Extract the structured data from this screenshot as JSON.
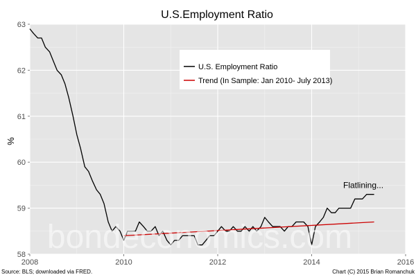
{
  "colors": {
    "panel": "#e5e5e5",
    "grid_major": "#ffffff",
    "grid_minor": "#f2f2f2",
    "series_actual": "#000000",
    "series_trend": "#cc0000"
  },
  "chart_data": {
    "type": "line",
    "title": "U.S.Employment Ratio",
    "xlabel": "",
    "ylabel": "%",
    "xlim": [
      2008,
      2016
    ],
    "ylim": [
      58,
      63
    ],
    "x_ticks": [
      2008,
      2010,
      2012,
      2014,
      2016
    ],
    "y_ticks": [
      58,
      59,
      60,
      61,
      62,
      63
    ],
    "grid": true,
    "legend_position": "top-center",
    "series": [
      {
        "name": "U.S. Employment Ratio",
        "color": "#000000",
        "values": [
          [
            2008.0,
            62.9
          ],
          [
            2008.08,
            62.8
          ],
          [
            2008.17,
            62.7
          ],
          [
            2008.25,
            62.7
          ],
          [
            2008.33,
            62.5
          ],
          [
            2008.42,
            62.4
          ],
          [
            2008.5,
            62.2
          ],
          [
            2008.58,
            62.0
          ],
          [
            2008.67,
            61.9
          ],
          [
            2008.75,
            61.7
          ],
          [
            2008.83,
            61.4
          ],
          [
            2008.92,
            61.0
          ],
          [
            2009.0,
            60.6
          ],
          [
            2009.08,
            60.3
          ],
          [
            2009.17,
            59.9
          ],
          [
            2009.25,
            59.8
          ],
          [
            2009.33,
            59.6
          ],
          [
            2009.42,
            59.4
          ],
          [
            2009.5,
            59.3
          ],
          [
            2009.58,
            59.1
          ],
          [
            2009.67,
            58.7
          ],
          [
            2009.75,
            58.5
          ],
          [
            2009.83,
            58.6
          ],
          [
            2009.92,
            58.5
          ],
          [
            2010.0,
            58.3
          ],
          [
            2010.08,
            58.5
          ],
          [
            2010.17,
            58.5
          ],
          [
            2010.25,
            58.5
          ],
          [
            2010.33,
            58.7
          ],
          [
            2010.42,
            58.6
          ],
          [
            2010.5,
            58.5
          ],
          [
            2010.58,
            58.5
          ],
          [
            2010.67,
            58.6
          ],
          [
            2010.75,
            58.4
          ],
          [
            2010.83,
            58.5
          ],
          [
            2010.92,
            58.3
          ],
          [
            2011.0,
            58.2
          ],
          [
            2011.08,
            58.3
          ],
          [
            2011.17,
            58.3
          ],
          [
            2011.25,
            58.4
          ],
          [
            2011.33,
            58.4
          ],
          [
            2011.42,
            58.4
          ],
          [
            2011.5,
            58.4
          ],
          [
            2011.58,
            58.2
          ],
          [
            2011.67,
            58.2
          ],
          [
            2011.75,
            58.3
          ],
          [
            2011.83,
            58.4
          ],
          [
            2011.92,
            58.4
          ],
          [
            2012.0,
            58.5
          ],
          [
            2012.08,
            58.6
          ],
          [
            2012.17,
            58.5
          ],
          [
            2012.25,
            58.5
          ],
          [
            2012.33,
            58.6
          ],
          [
            2012.42,
            58.5
          ],
          [
            2012.5,
            58.5
          ],
          [
            2012.58,
            58.6
          ],
          [
            2012.67,
            58.5
          ],
          [
            2012.75,
            58.6
          ],
          [
            2012.83,
            58.5
          ],
          [
            2012.92,
            58.6
          ],
          [
            2013.0,
            58.8
          ],
          [
            2013.08,
            58.7
          ],
          [
            2013.17,
            58.6
          ],
          [
            2013.25,
            58.6
          ],
          [
            2013.33,
            58.6
          ],
          [
            2013.42,
            58.5
          ],
          [
            2013.5,
            58.6
          ],
          [
            2013.58,
            58.6
          ],
          [
            2013.67,
            58.7
          ],
          [
            2013.75,
            58.7
          ],
          [
            2013.83,
            58.7
          ],
          [
            2013.92,
            58.6
          ],
          [
            2014.0,
            58.2
          ],
          [
            2014.08,
            58.6
          ],
          [
            2014.17,
            58.7
          ],
          [
            2014.25,
            58.8
          ],
          [
            2014.33,
            59.0
          ],
          [
            2014.42,
            58.9
          ],
          [
            2014.5,
            58.9
          ],
          [
            2014.58,
            59.0
          ],
          [
            2014.67,
            59.0
          ],
          [
            2014.75,
            59.0
          ],
          [
            2014.83,
            59.0
          ],
          [
            2014.92,
            59.2
          ],
          [
            2015.0,
            59.2
          ],
          [
            2015.08,
            59.2
          ],
          [
            2015.17,
            59.3
          ],
          [
            2015.25,
            59.3
          ],
          [
            2015.33,
            59.3
          ]
        ]
      },
      {
        "name": "Trend (In Sample: Jan 2010- July 2013)",
        "color": "#cc0000",
        "values": [
          [
            2010.0,
            58.4
          ],
          [
            2015.33,
            58.7
          ]
        ]
      }
    ],
    "annotations": [
      {
        "text": "Flatlining...",
        "x": 2015.1,
        "y": 59.5
      }
    ]
  },
  "watermark": "bondeconomics.com",
  "footer": {
    "source": "Source: BLS; downloaded via FRED.",
    "credit": "Chart (C) 2015 Brian Romanchuk"
  }
}
